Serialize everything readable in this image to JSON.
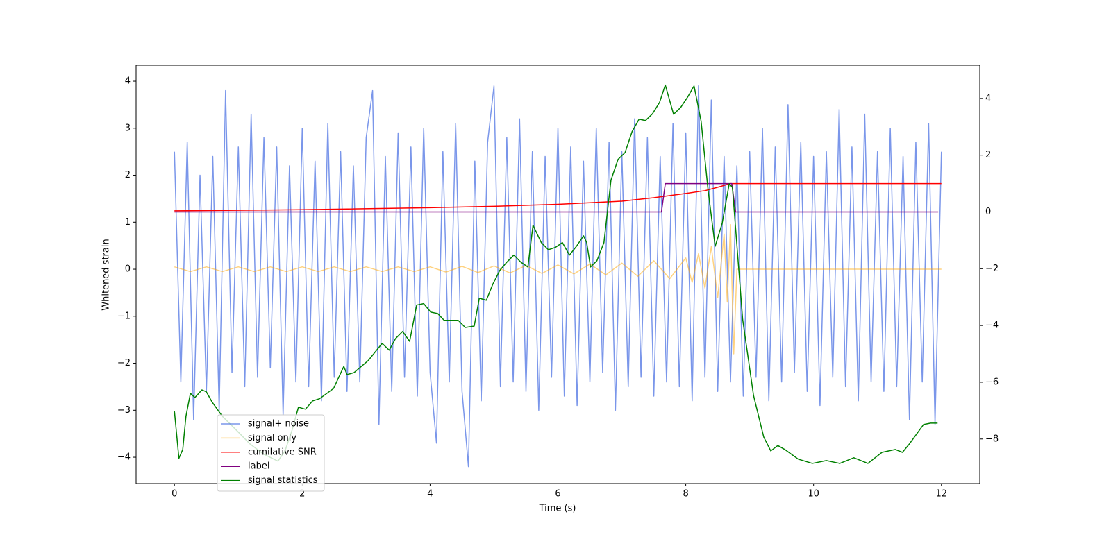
{
  "chart_data": {
    "type": "line",
    "xlabel": "Time (s)",
    "ylabel": "Whitened strain",
    "xlim": [
      -0.6,
      12.6
    ],
    "xticks": [
      0,
      2,
      4,
      6,
      8,
      10,
      12
    ],
    "ylim": [
      -4.56,
      4.34
    ],
    "yticks": [
      {
        "value": -4,
        "label": "−4"
      },
      {
        "value": -3,
        "label": "−3"
      },
      {
        "value": -2,
        "label": "−2"
      },
      {
        "value": -1,
        "label": "−1"
      },
      0,
      1,
      2,
      3,
      4
    ],
    "y2lim": [
      -9.57,
      5.17
    ],
    "y2ticks": [
      {
        "value": -8,
        "label": "−8"
      },
      {
        "value": -6,
        "label": "−6"
      },
      {
        "value": -4,
        "label": "−4"
      },
      {
        "value": -2,
        "label": "−2"
      },
      0,
      2,
      4
    ],
    "series": [
      {
        "name": "signal+ noise",
        "color": "#4169e1",
        "alpha": 0.7,
        "x": [
          0,
          0.1,
          0.2,
          0.3,
          0.4,
          0.5,
          0.6,
          0.7,
          0.8,
          0.9,
          1,
          1.1,
          1.2,
          1.3,
          1.4,
          1.5,
          1.6,
          1.7,
          1.8,
          1.9,
          2,
          2.1,
          2.2,
          2.3,
          2.4,
          2.5,
          2.6,
          2.7,
          2.8,
          2.9,
          3,
          3.1,
          3.2,
          3.3,
          3.4,
          3.5,
          3.6,
          3.7,
          3.8,
          3.9,
          4,
          4.1,
          4.2,
          4.3,
          4.4,
          4.5,
          4.6,
          4.7,
          4.8,
          4.9,
          5,
          5.1,
          5.2,
          5.3,
          5.4,
          5.5,
          5.6,
          5.7,
          5.8,
          5.9,
          6,
          6.1,
          6.2,
          6.3,
          6.4,
          6.5,
          6.6,
          6.7,
          6.8,
          6.9,
          7,
          7.1,
          7.2,
          7.3,
          7.4,
          7.5,
          7.6,
          7.7,
          7.8,
          7.9,
          8,
          8.1,
          8.2,
          8.3,
          8.4,
          8.5,
          8.6,
          8.7,
          8.8,
          8.9,
          9,
          9.1,
          9.2,
          9.3,
          9.4,
          9.5,
          9.6,
          9.7,
          9.8,
          9.9,
          10,
          10.1,
          10.2,
          10.3,
          10.4,
          10.5,
          10.6,
          10.7,
          10.8,
          10.9,
          11,
          11.1,
          11.2,
          11.3,
          11.4,
          11.5,
          11.6,
          11.7,
          11.8,
          11.9,
          12
        ],
        "values": [
          2.5,
          -2.4,
          2.7,
          -3.2,
          2.0,
          -2.6,
          2.4,
          -3.0,
          3.8,
          -2.2,
          2.6,
          -2.5,
          3.3,
          -2.3,
          2.8,
          -2.1,
          2.6,
          -3.1,
          2.2,
          -2.4,
          3.0,
          -2.5,
          2.3,
          -2.8,
          3.1,
          -2.3,
          2.5,
          -2.6,
          2.2,
          -2.4,
          2.8,
          3.8,
          -3.3,
          2.4,
          -2.6,
          2.9,
          -2.3,
          2.6,
          -2.7,
          3.0,
          -2.2,
          -3.7,
          2.5,
          -2.4,
          3.1,
          -2.6,
          -4.2,
          2.3,
          -2.8,
          2.7,
          3.9,
          -2.5,
          2.8,
          -2.4,
          3.2,
          -2.6,
          2.5,
          -3.0,
          2.4,
          -2.3,
          3.0,
          -2.7,
          2.6,
          -2.9,
          2.3,
          -2.4,
          3.0,
          -2.2,
          2.7,
          -3.0,
          2.5,
          -2.5,
          3.2,
          -2.3,
          2.8,
          -2.7,
          2.4,
          -2.4,
          3.1,
          -2.5,
          2.9,
          -2.8,
          3.9,
          -2.3,
          3.6,
          -2.6,
          2.4,
          -2.4,
          2.2,
          -2.7,
          2.5,
          -2.3,
          3.0,
          -2.8,
          2.6,
          -2.4,
          3.5,
          -2.2,
          2.7,
          -2.6,
          2.4,
          -2.9,
          2.5,
          -2.3,
          3.4,
          -2.5,
          2.6,
          -2.8,
          3.3,
          -2.4,
          2.5,
          -2.6,
          3.0,
          -2.5,
          2.4,
          -3.2,
          2.7,
          -2.4,
          3.1,
          -3.3,
          2.5
        ]
      },
      {
        "name": "signal only",
        "color": "#ffa500",
        "alpha": 0.5,
        "x": [
          0,
          0.25,
          0.5,
          0.75,
          1,
          1.25,
          1.5,
          1.75,
          2,
          2.25,
          2.5,
          2.75,
          3,
          3.25,
          3.5,
          3.75,
          4,
          4.25,
          4.5,
          4.75,
          5,
          5.25,
          5.5,
          5.75,
          6,
          6.25,
          6.5,
          6.75,
          7,
          7.25,
          7.5,
          7.75,
          8,
          8.1,
          8.2,
          8.3,
          8.4,
          8.5,
          8.6,
          8.65,
          8.7,
          8.75,
          8.8,
          12
        ],
        "values": [
          0.05,
          -0.05,
          0.05,
          -0.05,
          0.05,
          -0.05,
          0.05,
          -0.05,
          0.05,
          -0.05,
          0.05,
          -0.05,
          0.05,
          -0.05,
          0.05,
          -0.05,
          0.05,
          -0.06,
          0.06,
          -0.07,
          0.07,
          -0.08,
          0.08,
          -0.09,
          0.09,
          -0.1,
          0.11,
          -0.12,
          0.13,
          -0.15,
          0.18,
          -0.2,
          0.24,
          -0.28,
          0.33,
          -0.4,
          0.48,
          -0.6,
          0.75,
          -0.7,
          0.95,
          -1.8,
          0,
          0
        ]
      },
      {
        "name": "cumilative SNR",
        "color": "#ff0000",
        "alpha": 1,
        "axis": "y2",
        "x": [
          0,
          2,
          4,
          5,
          6,
          7,
          7.5,
          8,
          8.3,
          8.5,
          8.7,
          8.75,
          12
        ],
        "values": [
          0.04,
          0.08,
          0.15,
          0.2,
          0.27,
          0.38,
          0.5,
          0.65,
          0.75,
          0.87,
          1.0,
          1.0,
          1.0
        ]
      },
      {
        "name": "label",
        "color": "#800080",
        "alpha": 1,
        "axis": "y2",
        "x": [
          0,
          7.62,
          7.68,
          8.72,
          8.78,
          11.95
        ],
        "values": [
          0,
          0,
          1,
          1,
          0,
          0
        ]
      },
      {
        "name": "signal statistics",
        "color": "#008000",
        "alpha": 1,
        "axis": "y2",
        "x": [
          0,
          0.07,
          0.13,
          0.18,
          0.25,
          0.32,
          0.43,
          0.5,
          0.59,
          0.75,
          0.97,
          1.18,
          1.4,
          1.62,
          1.73,
          1.84,
          1.94,
          2.05,
          2.16,
          2.27,
          2.49,
          2.65,
          2.7,
          2.81,
          3.03,
          3.25,
          3.36,
          3.46,
          3.57,
          3.68,
          3.79,
          3.9,
          4.01,
          4.12,
          4.22,
          4.44,
          4.55,
          4.69,
          4.77,
          4.88,
          4.98,
          5.09,
          5.2,
          5.31,
          5.42,
          5.53,
          5.61,
          5.74,
          5.85,
          5.96,
          6.07,
          6.18,
          6.29,
          6.4,
          6.45,
          6.51,
          6.61,
          6.72,
          6.83,
          6.94,
          7.05,
          7.16,
          7.27,
          7.37,
          7.48,
          7.59,
          7.68,
          7.81,
          7.92,
          8.03,
          8.13,
          8.24,
          8.35,
          8.46,
          8.57,
          8.68,
          8.73,
          8.89,
          9.06,
          9.22,
          9.33,
          9.44,
          9.55,
          9.76,
          9.98,
          10.2,
          10.41,
          10.63,
          10.85,
          11.07,
          11.28,
          11.39,
          11.5,
          11.72,
          11.83,
          11.94
        ],
        "values": [
          -7.03,
          -8.68,
          -8.37,
          -7.2,
          -6.39,
          -6.54,
          -6.27,
          -6.34,
          -6.7,
          -7.2,
          -7.69,
          -8.17,
          -8.54,
          -8.78,
          -8.42,
          -7.69,
          -6.88,
          -6.95,
          -6.66,
          -6.58,
          -6.22,
          -5.44,
          -5.73,
          -5.66,
          -5.24,
          -4.63,
          -4.87,
          -4.46,
          -4.21,
          -4.56,
          -3.28,
          -3.23,
          -3.53,
          -3.58,
          -3.82,
          -3.82,
          -4.07,
          -4.02,
          -3.04,
          -3.11,
          -2.55,
          -2.06,
          -1.77,
          -1.52,
          -1.77,
          -1.94,
          -0.47,
          -1.08,
          -1.33,
          -1.25,
          -1.08,
          -1.52,
          -1.21,
          -0.84,
          -1.08,
          -1.94,
          -1.72,
          -1.08,
          1.12,
          1.85,
          2.09,
          2.83,
          3.27,
          3.22,
          3.46,
          3.86,
          4.47,
          3.44,
          3.68,
          4.05,
          4.44,
          3.2,
          0.75,
          -1.21,
          -0.4,
          0.99,
          0.87,
          -3.78,
          -6.46,
          -7.93,
          -8.42,
          -8.23,
          -8.37,
          -8.71,
          -8.86,
          -8.76,
          -8.86,
          -8.66,
          -8.86,
          -8.47,
          -8.37,
          -8.47,
          -8.17,
          -7.49,
          -7.44,
          -7.44
        ]
      }
    ]
  }
}
